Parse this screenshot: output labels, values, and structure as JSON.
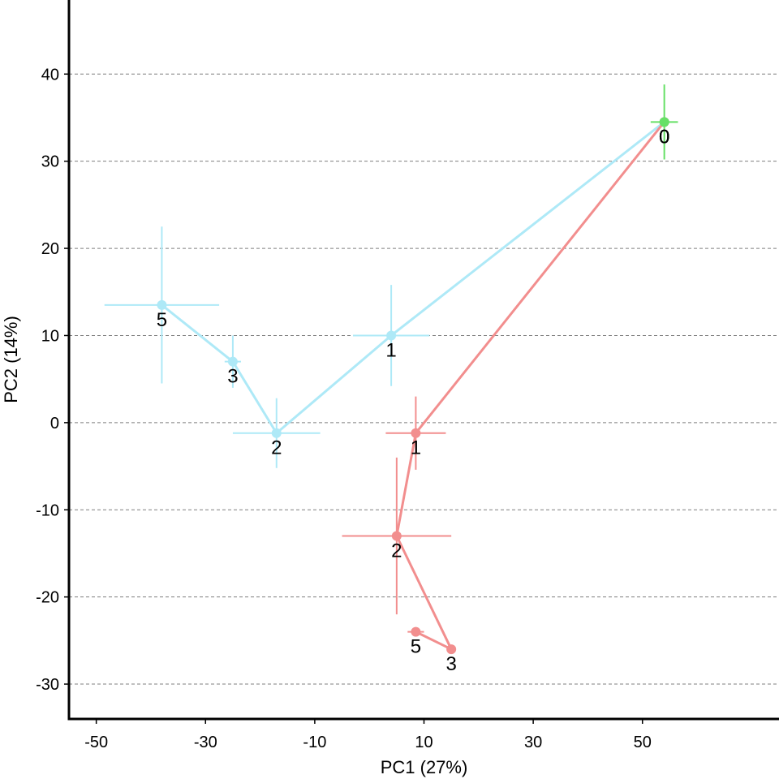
{
  "chart_data": {
    "type": "scatter",
    "title": "",
    "xlabel": "PC1 (27%)",
    "ylabel": "PC2 (14%)",
    "xlim": [
      -55,
      75
    ],
    "ylim": [
      -34,
      48.5
    ],
    "x_ticks": [
      -50,
      -30,
      -10,
      10,
      30,
      50
    ],
    "y_ticks": [
      -30,
      -20,
      -10,
      0,
      10,
      20,
      30,
      40
    ],
    "grid": "horizontal dashed",
    "legend": "none",
    "series": [
      {
        "color": "#aee9f7",
        "points": [
          {
            "label": "0",
            "x": 54,
            "y": 34.5,
            "xerr": 0,
            "yerr": 0
          },
          {
            "label": "1",
            "x": 4,
            "y": 10,
            "xerr": 7,
            "yerr": 5.8
          },
          {
            "label": "2",
            "x": -17,
            "y": -1.2,
            "xerr": 8,
            "yerr": 4
          },
          {
            "label": "3",
            "x": -25,
            "y": 7,
            "xerr": 1.5,
            "yerr": 3
          },
          {
            "label": "5",
            "x": -38,
            "y": 13.5,
            "xerr": 10.5,
            "yerr": 9
          }
        ]
      },
      {
        "color": "#f28e8e",
        "points": [
          {
            "label": "0",
            "x": 54,
            "y": 34.5,
            "xerr": 0,
            "yerr": 0
          },
          {
            "label": "1",
            "x": 8.5,
            "y": -1.2,
            "xerr": 5.5,
            "yerr": 4.2
          },
          {
            "label": "2",
            "x": 5,
            "y": -13,
            "xerr": 10,
            "yerr": 9
          },
          {
            "label": "3",
            "x": 15,
            "y": -26,
            "xerr": 0.5,
            "yerr": 0.5
          },
          {
            "label": "5",
            "x": 8.5,
            "y": -24,
            "xerr": 1.5,
            "yerr": 0.5
          }
        ]
      },
      {
        "color": "#66e066",
        "points": [
          {
            "label": "0",
            "x": 54,
            "y": 34.5,
            "xerr": 2.5,
            "yerr": 4.3
          }
        ]
      }
    ]
  }
}
